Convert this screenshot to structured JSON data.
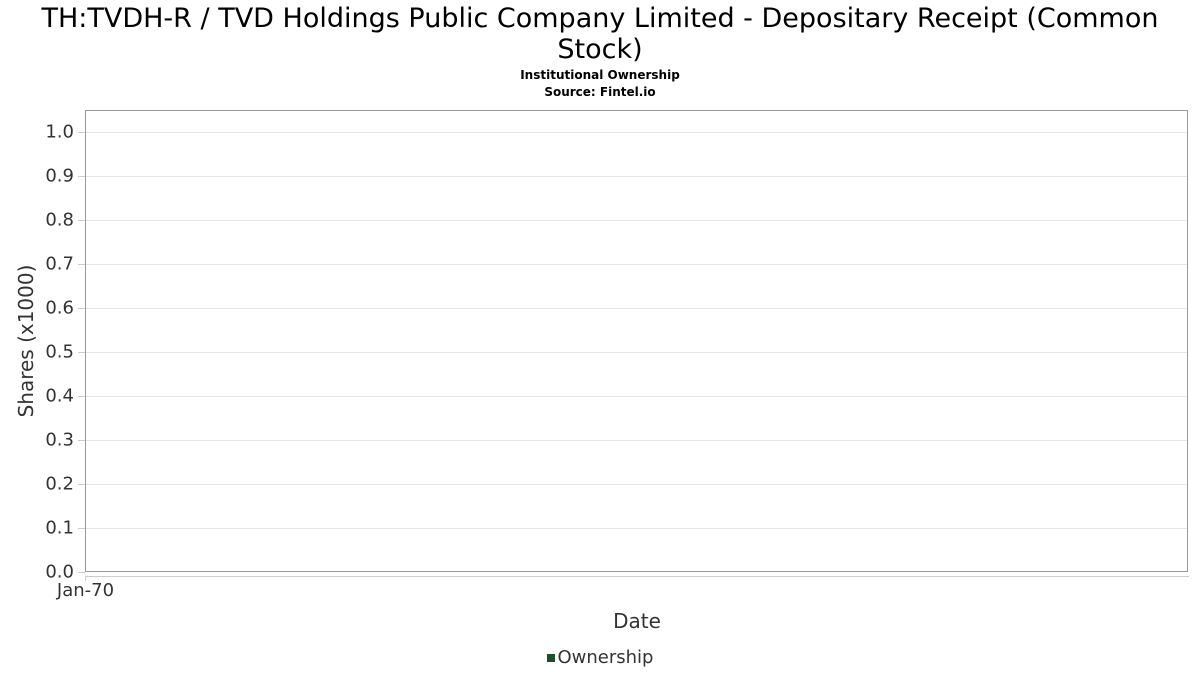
{
  "header": {
    "title_line1": "TH:TVDH-R / TVD Holdings Public Company Limited - Depositary Receipt (Common",
    "title_line2": "Stock)",
    "subtitle": "Institutional Ownership",
    "source": "Source: Fintel.io"
  },
  "chart_data": {
    "type": "line",
    "title": "TH:TVDH-R / TVD Holdings Public Company Limited - Depositary Receipt (Common Stock)",
    "subtitle": "Institutional Ownership",
    "source": "Source: Fintel.io",
    "xlabel": "Date",
    "ylabel": "Shares (x1000)",
    "x_tick_labels": [
      "Jan-70"
    ],
    "y_tick_labels": [
      "0.0",
      "0.1",
      "0.2",
      "0.3",
      "0.4",
      "0.5",
      "0.6",
      "0.7",
      "0.8",
      "0.9",
      "1.0"
    ],
    "ylim": [
      0.0,
      1.05
    ],
    "xlim_note": "single tick Jan-70 at left edge",
    "grid": "horizontal gridlines only",
    "legend_position": "bottom-center",
    "series": [
      {
        "name": "Ownership",
        "color": "#1d4f2c",
        "values": []
      }
    ],
    "colors": {
      "plot_border": "#999999",
      "gridline": "#e6e6e6",
      "axis_line": "#cccccc",
      "tick_text": "#333333",
      "title_text": "#000000",
      "series_ownership": "#1d4f2c"
    }
  }
}
